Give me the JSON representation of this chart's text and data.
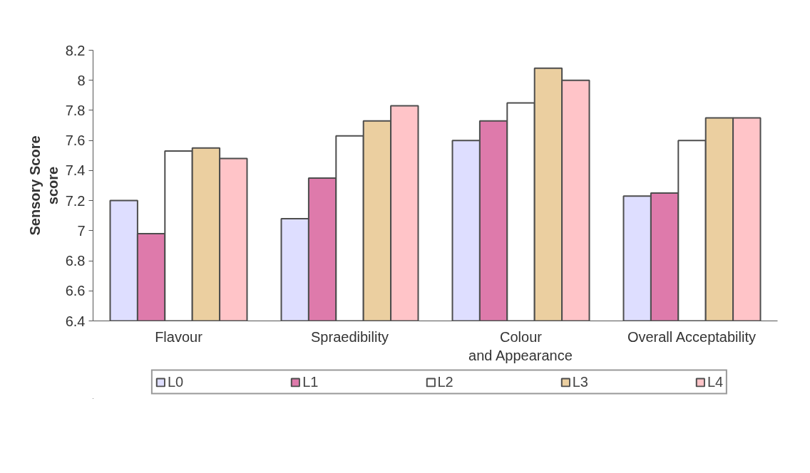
{
  "chart_data": {
    "type": "bar",
    "ylabel": "Sensory Score",
    "annotations": [
      "score"
    ],
    "categories": [
      "Flavour",
      "Spraedibility",
      "Colour and Appearance",
      "Overall Acceptability"
    ],
    "series": [
      {
        "name": "L0",
        "color": "#dedeff",
        "values": [
          7.2,
          7.08,
          7.6,
          7.23
        ]
      },
      {
        "name": "L1",
        "color": "#de7aab",
        "values": [
          6.98,
          7.35,
          7.73,
          7.25
        ]
      },
      {
        "name": "L2",
        "color": "#ffffff",
        "values": [
          7.53,
          7.63,
          7.85,
          7.6
        ]
      },
      {
        "name": "L3",
        "color": "#ebcfa0",
        "values": [
          7.55,
          7.73,
          8.08,
          7.75
        ]
      },
      {
        "name": "L4",
        "color": "#ffc4c8",
        "values": [
          7.48,
          7.83,
          8.0,
          7.75
        ]
      }
    ],
    "ylim": [
      6.4,
      8.2
    ],
    "yticks": [
      6.4,
      6.6,
      6.8,
      7,
      7.2,
      7.4,
      7.6,
      7.8,
      8,
      8.2
    ],
    "grid": false,
    "legend": "bottom"
  }
}
